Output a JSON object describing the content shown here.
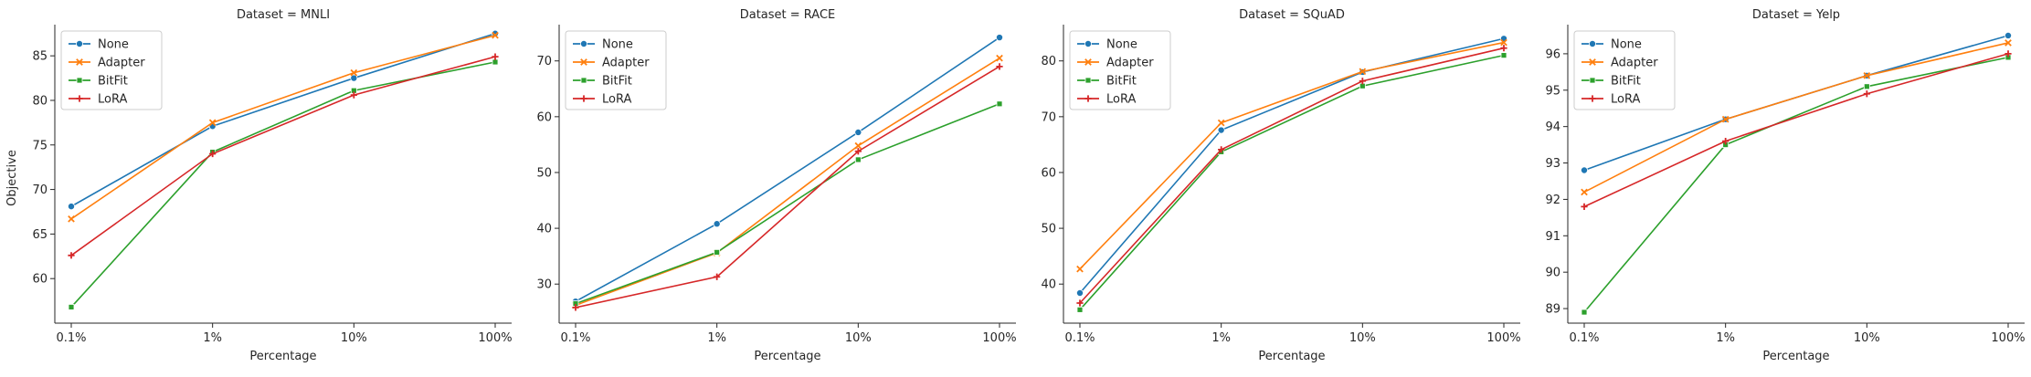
{
  "figure": {
    "ylabel": "Objective",
    "xlabel": "Percentage"
  },
  "legend_entries": [
    "None",
    "Adapter",
    "BitFit",
    "LoRA"
  ],
  "colors": {
    "None": "#1f77b4",
    "Adapter": "#ff7f0e",
    "BitFit": "#2ca02c",
    "LoRA": "#d62728"
  },
  "markers": {
    "None": "circle",
    "Adapter": "x",
    "BitFit": "square",
    "LoRA": "plus"
  },
  "chart_data": [
    {
      "type": "line",
      "title": "Dataset = MNLI",
      "xlabel": "Percentage",
      "ylabel": "Objective",
      "categories": [
        "0.1%",
        "1%",
        "10%",
        "100%"
      ],
      "ylim": [
        55,
        88.5
      ],
      "yticks": [
        60,
        65,
        70,
        75,
        80,
        85
      ],
      "grid": false,
      "legend": "top-left",
      "series": [
        {
          "name": "None",
          "values": [
            68.1,
            77.1,
            82.5,
            87.5
          ]
        },
        {
          "name": "Adapter",
          "values": [
            66.7,
            77.5,
            83.1,
            87.3
          ]
        },
        {
          "name": "BitFit",
          "values": [
            56.8,
            74.2,
            81.1,
            84.3
          ]
        },
        {
          "name": "LoRA",
          "values": [
            62.6,
            74.0,
            80.6,
            84.9
          ]
        }
      ]
    },
    {
      "type": "line",
      "title": "Dataset = RACE",
      "xlabel": "Percentage",
      "ylabel": "",
      "categories": [
        "0.1%",
        "1%",
        "10%",
        "100%"
      ],
      "ylim": [
        23,
        76.5
      ],
      "yticks": [
        30,
        40,
        50,
        60,
        70
      ],
      "grid": false,
      "legend": "top-left",
      "series": [
        {
          "name": "None",
          "values": [
            26.9,
            40.8,
            57.2,
            74.2
          ]
        },
        {
          "name": "Adapter",
          "values": [
            26.2,
            35.6,
            54.8,
            70.5
          ]
        },
        {
          "name": "BitFit",
          "values": [
            26.5,
            35.7,
            52.3,
            62.3
          ]
        },
        {
          "name": "LoRA",
          "values": [
            25.8,
            31.3,
            53.8,
            69.0
          ]
        }
      ]
    },
    {
      "type": "line",
      "title": "Dataset = SQuAD",
      "xlabel": "Percentage",
      "ylabel": "",
      "categories": [
        "0.1%",
        "1%",
        "10%",
        "100%"
      ],
      "ylim": [
        33,
        86.5
      ],
      "yticks": [
        40,
        50,
        60,
        70,
        80
      ],
      "grid": false,
      "legend": "top-left",
      "series": [
        {
          "name": "None",
          "values": [
            38.4,
            67.6,
            78.0,
            84.0
          ]
        },
        {
          "name": "Adapter",
          "values": [
            42.7,
            68.9,
            78.1,
            83.3
          ]
        },
        {
          "name": "BitFit",
          "values": [
            35.4,
            63.7,
            75.5,
            81.0
          ]
        },
        {
          "name": "LoRA",
          "values": [
            36.6,
            64.1,
            76.4,
            82.3
          ]
        }
      ]
    },
    {
      "type": "line",
      "title": "Dataset = Yelp",
      "xlabel": "Percentage",
      "ylabel": "",
      "categories": [
        "0.1%",
        "1%",
        "10%",
        "100%"
      ],
      "ylim": [
        88.6,
        96.8
      ],
      "yticks": [
        89,
        90,
        91,
        92,
        93,
        94,
        95,
        96
      ],
      "grid": false,
      "legend": "top-left",
      "series": [
        {
          "name": "None",
          "values": [
            92.8,
            94.2,
            95.4,
            96.5
          ]
        },
        {
          "name": "Adapter",
          "values": [
            92.2,
            94.2,
            95.4,
            96.3
          ]
        },
        {
          "name": "BitFit",
          "values": [
            88.9,
            93.5,
            95.1,
            95.9
          ]
        },
        {
          "name": "LoRA",
          "values": [
            91.8,
            93.6,
            94.9,
            96.0
          ]
        }
      ]
    }
  ]
}
